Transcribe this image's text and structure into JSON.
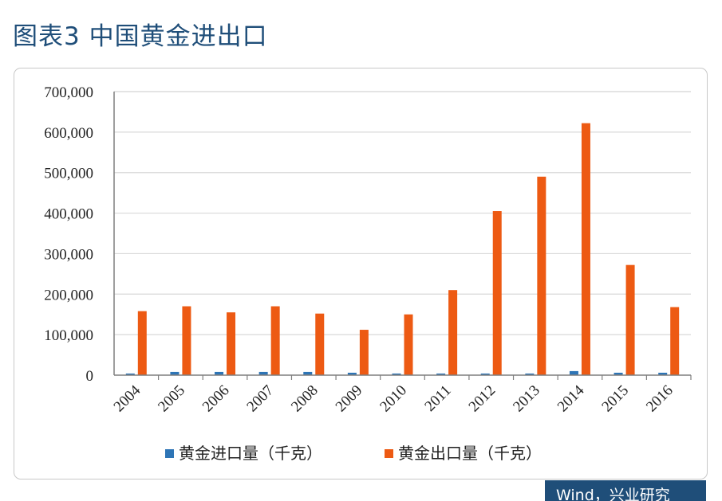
{
  "figure_title": "图表3 中国黄金进出口",
  "source_badge": "Wind，兴业研究",
  "colors": {
    "import": "#2e75b6",
    "export": "#ed5a13",
    "title": "#1f4e79"
  },
  "chart_data": {
    "type": "bar",
    "categories": [
      "2004",
      "2005",
      "2006",
      "2007",
      "2008",
      "2009",
      "2010",
      "2011",
      "2012",
      "2013",
      "2014",
      "2015",
      "2016"
    ],
    "series": [
      {
        "name": "黄金进口量（千克）",
        "values": [
          4000,
          8000,
          8000,
          8000,
          8000,
          6000,
          4000,
          4000,
          4000,
          4000,
          10000,
          6000,
          6000
        ]
      },
      {
        "name": "黄金出口量（千克）",
        "values": [
          158000,
          170000,
          155000,
          170000,
          152000,
          112000,
          150000,
          210000,
          405000,
          490000,
          622000,
          272000,
          168000
        ]
      }
    ],
    "yticks": [
      "0",
      "100,000",
      "200,000",
      "300,000",
      "400,000",
      "500,000",
      "600,000",
      "700,000"
    ],
    "ylim": [
      0,
      700000
    ],
    "grid": true,
    "legend_position": "bottom"
  }
}
